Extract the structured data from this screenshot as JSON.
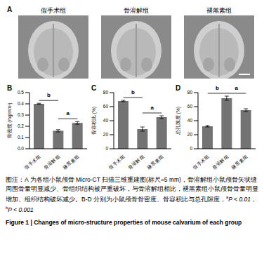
{
  "panel_a": {
    "label": "A",
    "groups": [
      "假手术组",
      "骨溶解组",
      "褪黑素组"
    ]
  },
  "chart_data": [
    {
      "panel": "B",
      "type": "bar",
      "ylabel": "骨密度 (mg/mm³)",
      "categories": [
        "假手术组",
        "骨溶解组",
        "褪黑素组"
      ],
      "values": [
        0.4,
        0.16,
        0.23
      ],
      "errors": [
        0.005,
        0.01,
        0.012
      ],
      "color": "#737373",
      "ylim": [
        0,
        0.5
      ],
      "yticks": [
        {
          "value": 0,
          "label": "0.0"
        },
        0.1,
        0.2,
        0.3,
        0.4,
        0.5
      ],
      "comparisons": [
        {
          "label": "b",
          "between": [
            "假手术组",
            "骨溶解组"
          ]
        },
        {
          "label": "a",
          "between": [
            "骨溶解组",
            "褪黑素组"
          ]
        }
      ]
    },
    {
      "panel": "C",
      "type": "bar",
      "ylabel": "骨容积比 (%)",
      "categories": [
        "假手术组",
        "骨溶解组",
        "褪黑素组"
      ],
      "values": [
        68,
        28,
        45
      ],
      "errors": [
        1,
        3,
        2
      ],
      "color": "#737373",
      "ylim": [
        0,
        80
      ],
      "yticks": [
        0,
        20,
        40,
        60,
        80
      ],
      "comparisons": [
        {
          "label": "b",
          "between": [
            "假手术组",
            "骨溶解组"
          ]
        },
        {
          "label": "a",
          "between": [
            "骨溶解组",
            "褪黑素组"
          ]
        }
      ]
    },
    {
      "panel": "D",
      "type": "bar",
      "ylabel": "总孔隙度 (%)",
      "categories": [
        "假手术组",
        "骨溶解组",
        "褪黑素组"
      ],
      "values": [
        32,
        72,
        55
      ],
      "errors": [
        1,
        3,
        2
      ],
      "color": "#737373",
      "ylim": [
        0,
        80
      ],
      "yticks": [
        0,
        20,
        40,
        60,
        80
      ],
      "comparisons": [
        {
          "label": "b",
          "between": [
            "假手术组",
            "骨溶解组"
          ]
        },
        {
          "label": "a",
          "between": [
            "骨溶解组",
            "褪黑素组"
          ]
        }
      ]
    }
  ],
  "caption": {
    "note": "图注：A 为各组小鼠颅骨 Micro-CT 扫描三维重建图(标尺=5 mm)，骨溶解组小鼠颅骨矢状缝周围骨量明显减少、骨组织结构被严重破坏，与骨溶解组相比，褪黑素组小鼠颅骨骨量明显增加、组织结构破坏减少。B-D 分别为小鼠颅骨骨密度、骨容积比与总孔隙度，",
    "significance": [
      {
        "mark": "a",
        "text": "P < 0.01，"
      },
      {
        "mark": "b",
        "text": "P < 0.001"
      }
    ],
    "title": "Figure 1 | Changes of micro-structure properties of mouse calvarium of each group"
  }
}
